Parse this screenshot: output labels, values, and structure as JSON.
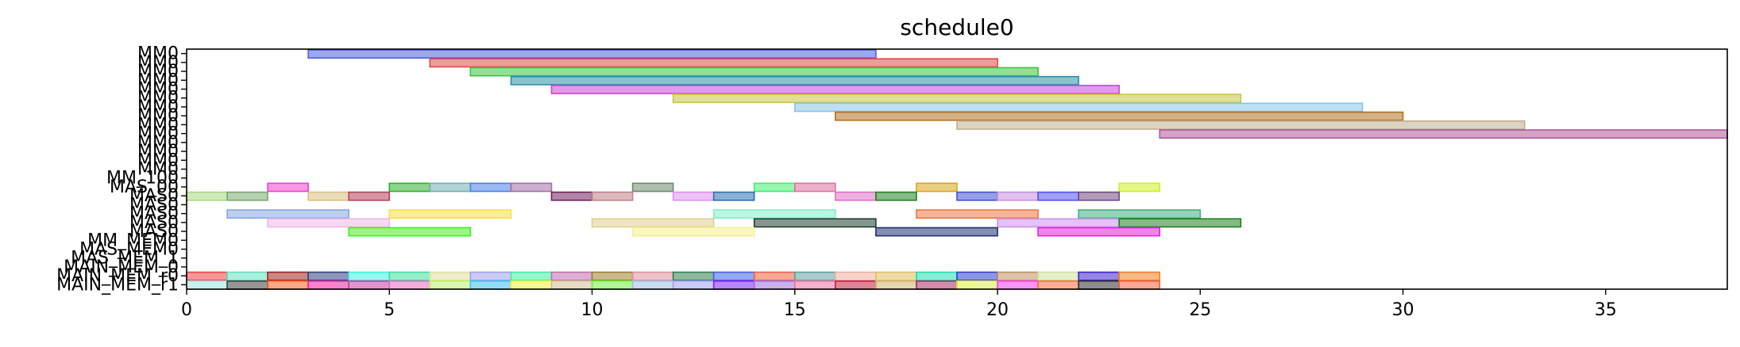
{
  "chart_data": {
    "type": "gantt",
    "title": "schedule0",
    "xlim": [
      0,
      38
    ],
    "xticks": [
      0,
      5,
      10,
      15,
      20,
      25,
      30,
      35
    ],
    "grid": false,
    "lanes": [
      "MM0",
      "MM0",
      "MM0",
      "MM0",
      "MM0",
      "MM0",
      "MM0",
      "MM0",
      "MM0",
      "MM0",
      "MM0",
      "MM0",
      "MM0",
      "MM0",
      "MM_100",
      "MAS_00",
      "MAS0",
      "MAS0",
      "MAS0",
      "MAS0",
      "MAS0",
      "MM_MEM0",
      "MAS_MEM0",
      "MAS_MEM_1",
      "MAIN_MEM_0",
      "MAIN_MEM_r0",
      "MAIN_MEM_r1"
    ],
    "tasks": [
      {
        "lane": 0,
        "start": 3,
        "end": 17,
        "color": "#4a5ee8"
      },
      {
        "lane": 1,
        "start": 6,
        "end": 20,
        "color": "#e04848"
      },
      {
        "lane": 2,
        "start": 7,
        "end": 21,
        "color": "#3ec43e"
      },
      {
        "lane": 3,
        "start": 8,
        "end": 22,
        "color": "#2a8fa6"
      },
      {
        "lane": 4,
        "start": 9,
        "end": 23,
        "color": "#c848d0"
      },
      {
        "lane": 5,
        "start": 12,
        "end": 26,
        "color": "#c8c440"
      },
      {
        "lane": 6,
        "start": 15,
        "end": 29,
        "color": "#88c4e8"
      },
      {
        "lane": 7,
        "start": 16,
        "end": 30,
        "color": "#b07020"
      },
      {
        "lane": 8,
        "start": 19,
        "end": 33,
        "color": "#c0b090"
      },
      {
        "lane": 9,
        "start": 24,
        "end": 38,
        "color": "#b05898"
      },
      {
        "lane": 15,
        "start": 2,
        "end": 3,
        "color": "#f040d0"
      },
      {
        "lane": 15,
        "start": 5,
        "end": 6,
        "color": "#30b030"
      },
      {
        "lane": 15,
        "start": 6,
        "end": 7,
        "color": "#70b0b0"
      },
      {
        "lane": 15,
        "start": 7,
        "end": 8,
        "color": "#4a80e8"
      },
      {
        "lane": 15,
        "start": 8,
        "end": 9,
        "color": "#a070a8"
      },
      {
        "lane": 15,
        "start": 11,
        "end": 12,
        "color": "#708870"
      },
      {
        "lane": 15,
        "start": 14,
        "end": 15,
        "color": "#40f070"
      },
      {
        "lane": 15,
        "start": 15,
        "end": 16,
        "color": "#e070a0"
      },
      {
        "lane": 15,
        "start": 18,
        "end": 19,
        "color": "#d8a818"
      },
      {
        "lane": 15,
        "start": 23,
        "end": 24,
        "color": "#d0f020"
      },
      {
        "lane": 16,
        "start": 0,
        "end": 1,
        "color": "#a8d880"
      },
      {
        "lane": 16,
        "start": 1,
        "end": 2,
        "color": "#78a870"
      },
      {
        "lane": 16,
        "start": 3,
        "end": 4,
        "color": "#d8c080"
      },
      {
        "lane": 16,
        "start": 4,
        "end": 5,
        "color": "#b04058"
      },
      {
        "lane": 16,
        "start": 9,
        "end": 10,
        "color": "#702060"
      },
      {
        "lane": 16,
        "start": 10,
        "end": 11,
        "color": "#c08088"
      },
      {
        "lane": 16,
        "start": 12,
        "end": 13,
        "color": "#e090f0"
      },
      {
        "lane": 16,
        "start": 13,
        "end": 14,
        "color": "#2870b0"
      },
      {
        "lane": 16,
        "start": 16,
        "end": 17,
        "color": "#e070c8"
      },
      {
        "lane": 16,
        "start": 17,
        "end": 18,
        "color": "#208020"
      },
      {
        "lane": 16,
        "start": 19,
        "end": 20,
        "color": "#4050d0"
      },
      {
        "lane": 16,
        "start": 20,
        "end": 21,
        "color": "#c890e0"
      },
      {
        "lane": 16,
        "start": 21,
        "end": 22,
        "color": "#5050f0"
      },
      {
        "lane": 16,
        "start": 22,
        "end": 23,
        "color": "#704880"
      },
      {
        "lane": 18,
        "start": 1,
        "end": 4,
        "color": "#88a8e0"
      },
      {
        "lane": 18,
        "start": 5,
        "end": 8,
        "color": "#f8e040"
      },
      {
        "lane": 18,
        "start": 13,
        "end": 16,
        "color": "#80f0c8"
      },
      {
        "lane": 18,
        "start": 18,
        "end": 21,
        "color": "#f07840"
      },
      {
        "lane": 18,
        "start": 22,
        "end": 25,
        "color": "#40b080"
      },
      {
        "lane": 19,
        "start": 2,
        "end": 5,
        "color": "#f0b8e8"
      },
      {
        "lane": 19,
        "start": 10,
        "end": 13,
        "color": "#e0d090"
      },
      {
        "lane": 19,
        "start": 14,
        "end": 17,
        "color": "#204030"
      },
      {
        "lane": 19,
        "start": 20,
        "end": 23,
        "color": "#d090f0"
      },
      {
        "lane": 19,
        "start": 23,
        "end": 26,
        "color": "#208020"
      },
      {
        "lane": 20,
        "start": 4,
        "end": 7,
        "color": "#40f020"
      },
      {
        "lane": 20,
        "start": 11,
        "end": 14,
        "color": "#f8f090"
      },
      {
        "lane": 20,
        "start": 17,
        "end": 20,
        "color": "#203070"
      },
      {
        "lane": 20,
        "start": 21,
        "end": 24,
        "color": "#e020e0"
      },
      {
        "lane": 25,
        "start": 0,
        "end": 1,
        "color": "#f04040"
      },
      {
        "lane": 25,
        "start": 1,
        "end": 2,
        "color": "#60e0c0"
      },
      {
        "lane": 25,
        "start": 2,
        "end": 3,
        "color": "#a02020"
      },
      {
        "lane": 25,
        "start": 3,
        "end": 4,
        "color": "#304080"
      },
      {
        "lane": 25,
        "start": 4,
        "end": 5,
        "color": "#40f0e0"
      },
      {
        "lane": 25,
        "start": 5,
        "end": 6,
        "color": "#40e0a0"
      },
      {
        "lane": 25,
        "start": 6,
        "end": 7,
        "color": "#e0e0a0"
      },
      {
        "lane": 25,
        "start": 7,
        "end": 8,
        "color": "#a0a0f0"
      },
      {
        "lane": 25,
        "start": 8,
        "end": 9,
        "color": "#40f0a0"
      },
      {
        "lane": 25,
        "start": 9,
        "end": 10,
        "color": "#c070b0"
      },
      {
        "lane": 25,
        "start": 10,
        "end": 11,
        "color": "#a08030"
      },
      {
        "lane": 25,
        "start": 11,
        "end": 12,
        "color": "#e090a0"
      },
      {
        "lane": 25,
        "start": 12,
        "end": 13,
        "color": "#308050"
      },
      {
        "lane": 25,
        "start": 13,
        "end": 14,
        "color": "#4060e0"
      },
      {
        "lane": 25,
        "start": 14,
        "end": 15,
        "color": "#f06040"
      },
      {
        "lane": 25,
        "start": 15,
        "end": 16,
        "color": "#60a0a0"
      },
      {
        "lane": 25,
        "start": 16,
        "end": 17,
        "color": "#f0b0a0"
      },
      {
        "lane": 25,
        "start": 17,
        "end": 18,
        "color": "#e0c060"
      },
      {
        "lane": 25,
        "start": 18,
        "end": 19,
        "color": "#20e0b0"
      },
      {
        "lane": 25,
        "start": 19,
        "end": 20,
        "color": "#3040d0"
      },
      {
        "lane": 25,
        "start": 20,
        "end": 21,
        "color": "#c09060"
      },
      {
        "lane": 25,
        "start": 21,
        "end": 22,
        "color": "#d0e0a0"
      },
      {
        "lane": 25,
        "start": 22,
        "end": 23,
        "color": "#4020d0"
      },
      {
        "lane": 25,
        "start": 23,
        "end": 24,
        "color": "#f08020"
      },
      {
        "lane": 26,
        "start": 0,
        "end": 1,
        "color": "#a0e0e0"
      },
      {
        "lane": 26,
        "start": 1,
        "end": 2,
        "color": "#404040"
      },
      {
        "lane": 26,
        "start": 2,
        "end": 3,
        "color": "#f06020"
      },
      {
        "lane": 26,
        "start": 3,
        "end": 4,
        "color": "#f020a0"
      },
      {
        "lane": 26,
        "start": 4,
        "end": 5,
        "color": "#c040a0"
      },
      {
        "lane": 26,
        "start": 5,
        "end": 6,
        "color": "#e070c0"
      },
      {
        "lane": 26,
        "start": 6,
        "end": 7,
        "color": "#c0f070"
      },
      {
        "lane": 26,
        "start": 7,
        "end": 8,
        "color": "#40c0f0"
      },
      {
        "lane": 26,
        "start": 8,
        "end": 9,
        "color": "#f0f040"
      },
      {
        "lane": 26,
        "start": 9,
        "end": 10,
        "color": "#d0c090"
      },
      {
        "lane": 26,
        "start": 10,
        "end": 11,
        "color": "#70f040"
      },
      {
        "lane": 26,
        "start": 11,
        "end": 12,
        "color": "#a0c0e0"
      },
      {
        "lane": 26,
        "start": 12,
        "end": 13,
        "color": "#a0a0f0"
      },
      {
        "lane": 26,
        "start": 13,
        "end": 14,
        "color": "#8020f0"
      },
      {
        "lane": 26,
        "start": 14,
        "end": 15,
        "color": "#a070e0"
      },
      {
        "lane": 26,
        "start": 15,
        "end": 16,
        "color": "#f070a0"
      },
      {
        "lane": 26,
        "start": 16,
        "end": 17,
        "color": "#c02040"
      },
      {
        "lane": 26,
        "start": 17,
        "end": 18,
        "color": "#d0b070"
      },
      {
        "lane": 26,
        "start": 18,
        "end": 19,
        "color": "#a03060"
      },
      {
        "lane": 26,
        "start": 19,
        "end": 20,
        "color": "#e0f040"
      },
      {
        "lane": 26,
        "start": 20,
        "end": 21,
        "color": "#f040f0"
      },
      {
        "lane": 26,
        "start": 21,
        "end": 22,
        "color": "#f07040"
      },
      {
        "lane": 26,
        "start": 22,
        "end": 23,
        "color": "#303030"
      },
      {
        "lane": 26,
        "start": 23,
        "end": 24,
        "color": "#f06040"
      }
    ]
  }
}
